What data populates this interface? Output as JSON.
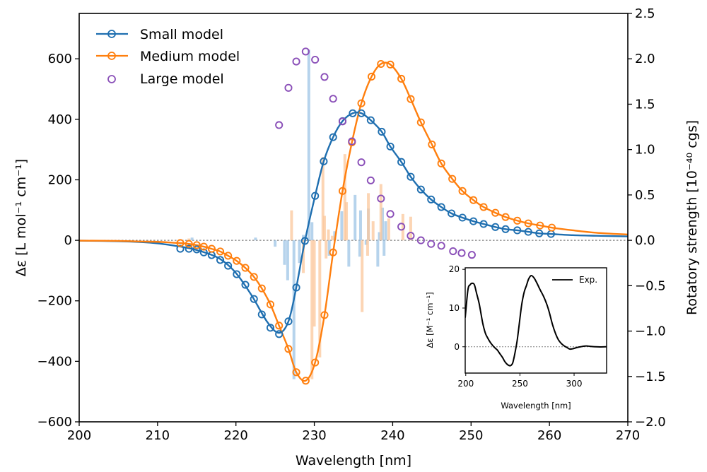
{
  "chart_data": {
    "type": "line",
    "title": "",
    "xlabel": "Wavelength [nm]",
    "ylabel_left": "Δε [L mol⁻¹ cm⁻¹]",
    "ylabel_right": "Rotatory strength [10⁻⁴⁰ cgs]",
    "xlim": [
      200,
      270
    ],
    "ylim_left": [
      -600,
      750
    ],
    "ylim_right": [
      -2.0,
      2.5
    ],
    "x_ticks": [
      "200",
      "210",
      "220",
      "230",
      "240",
      "250",
      "260",
      "270"
    ],
    "y_ticks_left": [
      "−600",
      "−400",
      "−200",
      "0",
      "200",
      "400",
      "600"
    ],
    "y_ticks_right": [
      "−2.0",
      "−1.5",
      "−1.0",
      "−0.5",
      "0.0",
      "0.5",
      "1.0",
      "1.5",
      "2.0",
      "2.5"
    ],
    "legend_position": "top-left",
    "zero_line": "dotted gray",
    "series": [
      {
        "name": "Small model",
        "color": "#1f6fb0",
        "axis": "left",
        "style": "line+open-markers",
        "line": [
          [
            200,
            -1
          ],
          [
            205,
            -3
          ],
          [
            208,
            -6
          ],
          [
            210,
            -10
          ],
          [
            212,
            -17
          ],
          [
            214,
            -26
          ],
          [
            216,
            -40
          ],
          [
            218,
            -62
          ],
          [
            220,
            -108
          ],
          [
            222,
            -182
          ],
          [
            224,
            -270
          ],
          [
            225.5,
            -306
          ],
          [
            226.7,
            -268
          ],
          [
            227.7,
            -156
          ],
          [
            228.8,
            -2
          ],
          [
            230.1,
            147
          ],
          [
            231.2,
            261
          ],
          [
            232.4,
            341
          ],
          [
            233.6,
            394
          ],
          [
            234.9,
            420
          ],
          [
            236.0,
            420
          ],
          [
            237.2,
            397
          ],
          [
            238.6,
            359
          ],
          [
            239.7,
            310
          ],
          [
            241.1,
            259
          ],
          [
            242.3,
            210
          ],
          [
            243.6,
            168
          ],
          [
            244.9,
            135
          ],
          [
            246.2,
            110
          ],
          [
            247.5,
            89
          ],
          [
            248.9,
            75
          ],
          [
            250.3,
            63
          ],
          [
            251.6,
            54
          ],
          [
            253.1,
            44
          ],
          [
            254.4,
            37
          ],
          [
            255.9,
            33
          ],
          [
            257.3,
            28
          ],
          [
            258.7,
            23
          ],
          [
            260.2,
            21
          ],
          [
            263,
            17
          ],
          [
            266,
            15
          ],
          [
            270,
            13
          ]
        ],
        "markers": [
          [
            212.9,
            -28
          ],
          [
            214.0,
            -28
          ],
          [
            215.0,
            -30
          ],
          [
            215.9,
            -40
          ],
          [
            216.9,
            -49
          ],
          [
            218.0,
            -65
          ],
          [
            219.0,
            -84
          ],
          [
            220.1,
            -112
          ],
          [
            221.2,
            -147
          ],
          [
            222.3,
            -194
          ],
          [
            223.3,
            -245
          ],
          [
            224.4,
            -289
          ],
          [
            225.5,
            -310
          ],
          [
            226.7,
            -268
          ],
          [
            227.7,
            -156
          ],
          [
            228.8,
            -2
          ],
          [
            230.1,
            147
          ],
          [
            231.2,
            261
          ],
          [
            232.4,
            341
          ],
          [
            233.6,
            394
          ],
          [
            234.9,
            420
          ],
          [
            236.0,
            420
          ],
          [
            237.2,
            397
          ],
          [
            238.6,
            359
          ],
          [
            239.7,
            310
          ],
          [
            241.1,
            259
          ],
          [
            242.3,
            210
          ],
          [
            243.6,
            168
          ],
          [
            244.9,
            135
          ],
          [
            246.2,
            110
          ],
          [
            247.5,
            89
          ],
          [
            248.9,
            75
          ],
          [
            250.3,
            63
          ],
          [
            251.6,
            54
          ],
          [
            253.1,
            44
          ],
          [
            254.4,
            37
          ],
          [
            255.9,
            33
          ],
          [
            257.3,
            28
          ],
          [
            258.7,
            23
          ],
          [
            260.2,
            21
          ]
        ]
      },
      {
        "name": "Medium model",
        "color": "#ff7f0e",
        "axis": "left",
        "style": "line+open-markers",
        "line": [
          [
            200,
            -1
          ],
          [
            205,
            -2
          ],
          [
            208,
            -4
          ],
          [
            210,
            -5
          ],
          [
            212,
            -8
          ],
          [
            212.9,
            -9
          ],
          [
            214.0,
            -12
          ],
          [
            215.0,
            -16
          ],
          [
            215.9,
            -21
          ],
          [
            216.9,
            -28
          ],
          [
            218.0,
            -37
          ],
          [
            219.0,
            -51
          ],
          [
            220.1,
            -68
          ],
          [
            221.2,
            -91
          ],
          [
            222.3,
            -121
          ],
          [
            223.3,
            -159
          ],
          [
            224.4,
            -212
          ],
          [
            225.5,
            -282
          ],
          [
            226.7,
            -359
          ],
          [
            227.7,
            -436
          ],
          [
            228.9,
            -464
          ],
          [
            230.1,
            -404
          ],
          [
            231.3,
            -247
          ],
          [
            232.4,
            -40
          ],
          [
            233.6,
            163
          ],
          [
            234.8,
            324
          ],
          [
            236.0,
            453
          ],
          [
            237.3,
            541
          ],
          [
            238.5,
            583
          ],
          [
            239.7,
            581
          ],
          [
            241.1,
            534
          ],
          [
            242.3,
            467
          ],
          [
            243.6,
            390
          ],
          [
            245.0,
            317
          ],
          [
            246.2,
            254
          ],
          [
            247.6,
            203
          ],
          [
            248.9,
            163
          ],
          [
            250.3,
            133
          ],
          [
            251.6,
            110
          ],
          [
            253.1,
            91
          ],
          [
            254.4,
            77
          ],
          [
            255.9,
            65
          ],
          [
            257.3,
            56
          ],
          [
            258.8,
            49
          ],
          [
            260.3,
            42
          ],
          [
            263,
            33
          ],
          [
            266,
            25
          ],
          [
            270,
            19
          ]
        ],
        "markers": [
          [
            212.9,
            -9
          ],
          [
            214.0,
            -12
          ],
          [
            215.0,
            -16
          ],
          [
            215.9,
            -21
          ],
          [
            216.9,
            -28
          ],
          [
            218.0,
            -37
          ],
          [
            219.0,
            -51
          ],
          [
            220.1,
            -68
          ],
          [
            221.2,
            -91
          ],
          [
            222.3,
            -121
          ],
          [
            223.3,
            -159
          ],
          [
            224.4,
            -212
          ],
          [
            225.5,
            -282
          ],
          [
            226.7,
            -359
          ],
          [
            227.7,
            -436
          ],
          [
            228.9,
            -464
          ],
          [
            230.1,
            -404
          ],
          [
            231.3,
            -247
          ],
          [
            232.4,
            -40
          ],
          [
            233.6,
            163
          ],
          [
            234.8,
            324
          ],
          [
            236.0,
            453
          ],
          [
            237.3,
            541
          ],
          [
            238.5,
            583
          ],
          [
            239.7,
            581
          ],
          [
            241.1,
            534
          ],
          [
            242.3,
            467
          ],
          [
            243.6,
            390
          ],
          [
            245.0,
            317
          ],
          [
            246.2,
            254
          ],
          [
            247.6,
            203
          ],
          [
            248.9,
            163
          ],
          [
            250.3,
            133
          ],
          [
            251.6,
            110
          ],
          [
            253.1,
            91
          ],
          [
            254.4,
            77
          ],
          [
            255.9,
            65
          ],
          [
            257.3,
            56
          ],
          [
            258.8,
            49
          ],
          [
            260.3,
            42
          ]
        ]
      },
      {
        "name": "Large model",
        "color": "#8a4fb8",
        "axis": "right",
        "style": "open-markers",
        "markers": [
          [
            225.5,
            1.27
          ],
          [
            226.7,
            1.68
          ],
          [
            227.7,
            1.97
          ],
          [
            228.9,
            2.08
          ],
          [
            230.1,
            1.99
          ],
          [
            231.3,
            1.8
          ],
          [
            232.4,
            1.56
          ],
          [
            233.6,
            1.31
          ],
          [
            234.8,
            1.09
          ],
          [
            236.0,
            0.86
          ],
          [
            237.2,
            0.66
          ],
          [
            238.5,
            0.46
          ],
          [
            239.7,
            0.29
          ],
          [
            241.1,
            0.15
          ],
          [
            242.3,
            0.05
          ],
          [
            243.6,
            0.0
          ],
          [
            244.9,
            -0.04
          ],
          [
            246.2,
            -0.06
          ],
          [
            247.7,
            -0.12
          ],
          [
            248.8,
            -0.14
          ],
          [
            250.1,
            -0.16
          ]
        ]
      }
    ],
    "stick_spectra": [
      {
        "name": "Small model sticks",
        "color": "#9ec5e6",
        "axis": "right",
        "sticks": [
          [
            214.4,
            0.03
          ],
          [
            222.5,
            0.03
          ],
          [
            225.0,
            -0.07
          ],
          [
            226.2,
            -0.27
          ],
          [
            226.6,
            -0.44
          ],
          [
            227.4,
            -1.53
          ],
          [
            228.1,
            -0.25
          ],
          [
            228.6,
            0.06
          ],
          [
            229.3,
            2.1
          ],
          [
            229.7,
            0.2
          ],
          [
            231.9,
            -0.17
          ],
          [
            232.6,
            0.1
          ],
          [
            233.5,
            0.32
          ],
          [
            234.4,
            -0.29
          ],
          [
            235.2,
            0.5
          ],
          [
            235.8,
            -0.18
          ],
          [
            235.9,
            0.33
          ],
          [
            236.6,
            -0.05
          ],
          [
            236.9,
            0.35
          ],
          [
            238.1,
            -0.29
          ],
          [
            238.9,
            -0.17
          ],
          [
            238.3,
            0.09
          ],
          [
            238.7,
            0.36
          ],
          [
            239.1,
            0.21
          ]
        ]
      },
      {
        "name": "Medium model sticks",
        "color": "#fcc89c",
        "axis": "right",
        "sticks": [
          [
            214.0,
            0.02
          ],
          [
            227.1,
            0.33
          ],
          [
            228.6,
            -0.36
          ],
          [
            229.7,
            -1.53
          ],
          [
            230.0,
            -0.95
          ],
          [
            230.7,
            -1.29
          ],
          [
            231.1,
            0.92
          ],
          [
            231.3,
            0.27
          ],
          [
            231.5,
            -0.2
          ],
          [
            231.8,
            0.12
          ],
          [
            232.3,
            0.05
          ],
          [
            233.9,
            0.95
          ],
          [
            234.1,
            0.42
          ],
          [
            236.1,
            -0.79
          ],
          [
            236.8,
            -0.17
          ],
          [
            236.9,
            0.52
          ],
          [
            237.5,
            0.21
          ],
          [
            238.5,
            0.62
          ],
          [
            239.5,
            0.24
          ],
          [
            241.3,
            0.29
          ],
          [
            242.3,
            0.26
          ]
        ]
      }
    ],
    "inset": {
      "type": "line",
      "xlabel": "Wavelength [nm]",
      "ylabel": "Δε [M⁻¹ cm⁻¹]",
      "xlim": [
        199.5,
        330
      ],
      "ylim": [
        -6.8,
        20.4
      ],
      "x_ticks": [
        "200",
        "250",
        "300"
      ],
      "y_ticks": [
        "0",
        "10",
        "20"
      ],
      "legend": "Exp.",
      "legend_position": "top-right",
      "series": [
        {
          "name": "Exp.",
          "color": "#000000",
          "points": [
            [
              199.5,
              7.5
            ],
            [
              202,
              14.7
            ],
            [
              204,
              16.0
            ],
            [
              206,
              16.4
            ],
            [
              208,
              16.0
            ],
            [
              210,
              13.8
            ],
            [
              212.5,
              11
            ],
            [
              215.6,
              6.2
            ],
            [
              218,
              3.6
            ],
            [
              220,
              2.4
            ],
            [
              223,
              1.0
            ],
            [
              226.6,
              -0.2
            ],
            [
              229,
              -0.8
            ],
            [
              231,
              -1.6
            ],
            [
              234,
              -2.8
            ],
            [
              236,
              -3.8
            ],
            [
              238.5,
              -4.6
            ],
            [
              241,
              -4.9
            ],
            [
              243,
              -4.4
            ],
            [
              244,
              -3.5
            ],
            [
              245.5,
              -1.5
            ],
            [
              247.4,
              1.5
            ],
            [
              249,
              5
            ],
            [
              250.6,
              8.7
            ],
            [
              252,
              11.5
            ],
            [
              254,
              14.2
            ],
            [
              256,
              15.8
            ],
            [
              258,
              17.5
            ],
            [
              260.4,
              18.4
            ],
            [
              263,
              17.8
            ],
            [
              265.6,
              16.5
            ],
            [
              268.5,
              14.8
            ],
            [
              272,
              12.9
            ],
            [
              275,
              10.8
            ],
            [
              277.3,
              8.7
            ],
            [
              280,
              5.8
            ],
            [
              283,
              3.3
            ],
            [
              285.5,
              1.8
            ],
            [
              288.3,
              0.8
            ],
            [
              291,
              0.2
            ],
            [
              293.5,
              -0.2
            ],
            [
              296,
              -0.6
            ],
            [
              299,
              -0.5
            ],
            [
              302.6,
              -0.2
            ],
            [
              306,
              0.0
            ],
            [
              311,
              0.2
            ],
            [
              315,
              0.1
            ],
            [
              319.5,
              0.0
            ],
            [
              324,
              -0.05
            ],
            [
              330,
              0.0
            ]
          ]
        }
      ]
    }
  }
}
